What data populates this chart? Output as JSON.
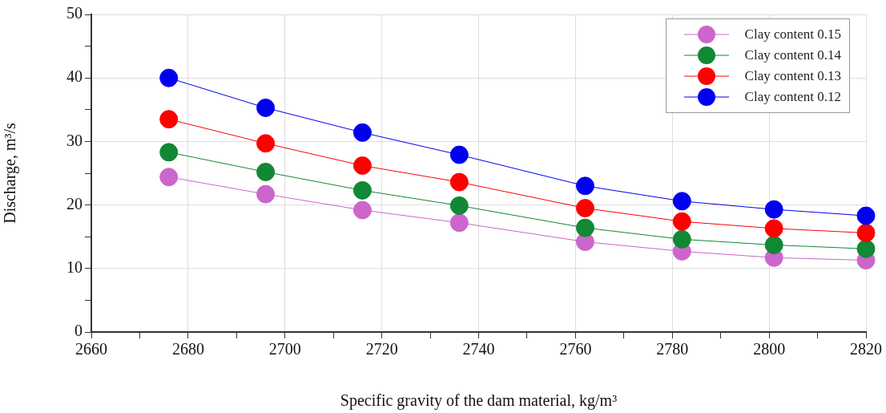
{
  "chart_data": {
    "type": "line",
    "xlabel": "Specific gravity of the dam material, kg/m³",
    "ylabel": "Discharge, m³/s",
    "x": [
      2676,
      2696,
      2716,
      2736,
      2762,
      2782,
      2801,
      2820
    ],
    "series": [
      {
        "name": "Clay content 0.15",
        "color": "#cc66cc",
        "values": [
          24.4,
          21.7,
          19.2,
          17.2,
          14.2,
          12.7,
          11.7,
          11.3
        ]
      },
      {
        "name": "Clay content 0.14",
        "color": "#118833",
        "values": [
          28.3,
          25.2,
          22.3,
          19.9,
          16.4,
          14.6,
          13.7,
          13.1
        ]
      },
      {
        "name": "Clay content 0.13",
        "color": "#ff0000",
        "values": [
          33.5,
          29.7,
          26.2,
          23.6,
          19.5,
          17.4,
          16.3,
          15.6
        ]
      },
      {
        "name": "Clay content 0.12",
        "color": "#0000ee",
        "values": [
          40.0,
          35.3,
          31.4,
          27.9,
          23.0,
          20.6,
          19.3,
          18.3
        ]
      }
    ],
    "xlim": [
      2660,
      2820
    ],
    "xticks": [
      2660,
      {
        "value": 2670,
        "label": null
      },
      2680,
      {
        "value": 2690,
        "label": null
      },
      2700,
      {
        "value": 2710,
        "label": null
      },
      2720,
      {
        "value": 2730,
        "label": null
      },
      2740,
      {
        "value": 2750,
        "label": null
      },
      2760,
      {
        "value": 2770,
        "label": null
      },
      2780,
      {
        "value": 2790,
        "label": null
      },
      2800,
      {
        "value": 2810,
        "label": null
      },
      2820
    ],
    "ylim": [
      0,
      50
    ],
    "yticks": [
      0,
      {
        "value": 5,
        "label": null
      },
      10,
      {
        "value": 15,
        "label": null
      },
      20,
      {
        "value": 25,
        "label": null
      },
      30,
      {
        "value": 35,
        "label": null
      },
      40,
      {
        "value": 45,
        "label": null
      },
      50
    ],
    "grid": true,
    "legend": "top right",
    "marker": "circle",
    "line_style": "solid"
  }
}
